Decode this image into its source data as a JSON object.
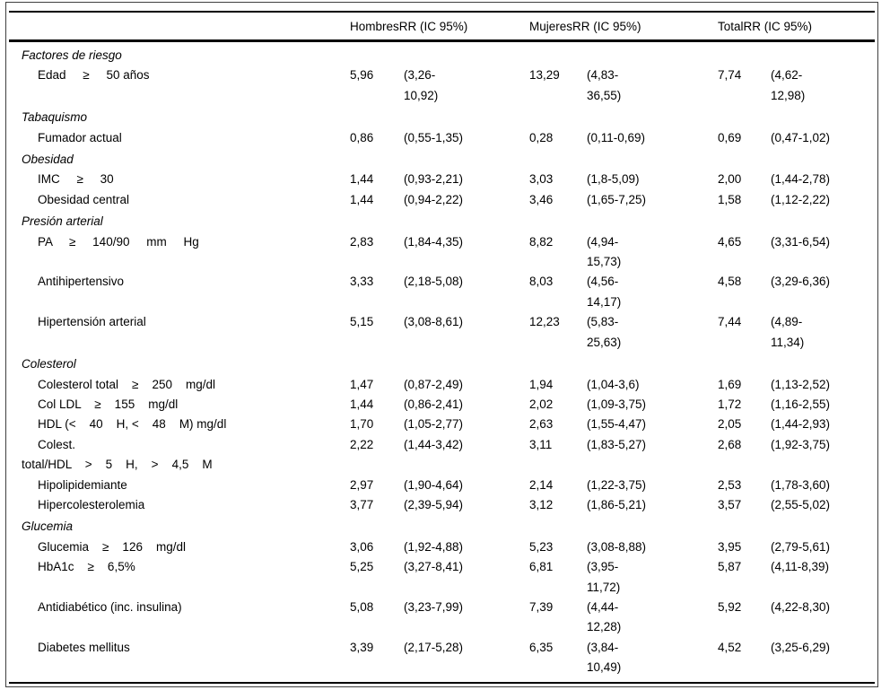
{
  "table": {
    "headers": {
      "hombres": "HombresRR (IC 95%)",
      "mujeres": "MujeresRR (IC 95%)",
      "total": "TotalRR (IC 95%)"
    },
    "rows": [
      {
        "type": "section",
        "label": "Factores de riesgo"
      },
      {
        "type": "item",
        "label": "Edad     ≥     50 años",
        "h_rr": "5,96",
        "h_ci": "(3,26-\n10,92)",
        "m_rr": "13,29",
        "m_ci": "(4,83-\n36,55)",
        "t_rr": "7,74",
        "t_ci": "(4,62-\n12,98)"
      },
      {
        "type": "section",
        "label": "Tabaquismo"
      },
      {
        "type": "item",
        "label": "Fumador actual",
        "h_rr": "0,86",
        "h_ci": "(0,55-1,35)",
        "m_rr": "0,28",
        "m_ci": "(0,11-0,69)",
        "t_rr": "0,69",
        "t_ci": "(0,47-1,02)"
      },
      {
        "type": "section",
        "label": "Obesidad"
      },
      {
        "type": "item",
        "label": "IMC     ≥     30",
        "h_rr": "1,44",
        "h_ci": "(0,93-2,21)",
        "m_rr": "3,03",
        "m_ci": "(1,8-5,09)",
        "t_rr": "2,00",
        "t_ci": "(1,44-2,78)"
      },
      {
        "type": "item",
        "label": "Obesidad central",
        "h_rr": "1,44",
        "h_ci": "(0,94-2,22)",
        "m_rr": "3,46",
        "m_ci": "(1,65-7,25)",
        "t_rr": "1,58",
        "t_ci": "(1,12-2,22)"
      },
      {
        "type": "section",
        "label": "Presión arterial"
      },
      {
        "type": "item",
        "label": "PA     ≥     140/90     mm     Hg",
        "h_rr": "2,83",
        "h_ci": "(1,84-4,35)",
        "m_rr": "8,82",
        "m_ci": "(4,94-\n15,73)",
        "t_rr": "4,65",
        "t_ci": "(3,31-6,54)"
      },
      {
        "type": "item",
        "label": "Antihipertensivo",
        "h_rr": "3,33",
        "h_ci": "(2,18-5,08)",
        "m_rr": "8,03",
        "m_ci": "(4,56-\n14,17)",
        "t_rr": "4,58",
        "t_ci": "(3,29-6,36)"
      },
      {
        "type": "item",
        "label": "Hipertensión arterial",
        "h_rr": "5,15",
        "h_ci": "(3,08-8,61)",
        "m_rr": "12,23",
        "m_ci": "(5,83-\n25,63)",
        "t_rr": "7,44",
        "t_ci": "(4,89-\n11,34)"
      },
      {
        "type": "section",
        "label": "Colesterol"
      },
      {
        "type": "item",
        "label": "Colesterol total    ≥    250    mg/dl",
        "h_rr": "1,47",
        "h_ci": "(0,87-2,49)",
        "m_rr": "1,94",
        "m_ci": "(1,04-3,6)",
        "t_rr": "1,69",
        "t_ci": "(1,13-2,52)"
      },
      {
        "type": "item",
        "label": "Col LDL    ≥    155    mg/dl",
        "h_rr": "1,44",
        "h_ci": "(0,86-2,41)",
        "m_rr": "2,02",
        "m_ci": "(1,09-3,75)",
        "t_rr": "1,72",
        "t_ci": "(1,16-2,55)"
      },
      {
        "type": "item",
        "label": "HDL (<    40    H, <    48    M) mg/dl",
        "h_rr": "1,70",
        "h_ci": "(1,05-2,77)",
        "m_rr": "2,63",
        "m_ci": "(1,55-4,47)",
        "t_rr": "2,05",
        "t_ci": "(1,44-2,93)"
      },
      {
        "type": "item",
        "outdent": true,
        "label": "Colest.\ntotal/HDL    >    5    H,    >    4,5    M",
        "h_rr": "2,22",
        "h_ci": "(1,44-3,42)",
        "m_rr": "3,11",
        "m_ci": "(1,83-5,27)",
        "t_rr": "2,68",
        "t_ci": "(1,92-3,75)"
      },
      {
        "type": "item",
        "label": "Hipolipidemiante",
        "h_rr": "2,97",
        "h_ci": "(1,90-4,64)",
        "m_rr": "2,14",
        "m_ci": "(1,22-3,75)",
        "t_rr": "2,53",
        "t_ci": "(1,78-3,60)"
      },
      {
        "type": "item",
        "label": "Hipercolesterolemia",
        "h_rr": "3,77",
        "h_ci": "(2,39-5,94)",
        "m_rr": "3,12",
        "m_ci": "(1,86-5,21)",
        "t_rr": "3,57",
        "t_ci": "(2,55-5,02)"
      },
      {
        "type": "section",
        "label": "Glucemia"
      },
      {
        "type": "item",
        "label": "Glucemia    ≥    126    mg/dl",
        "h_rr": "3,06",
        "h_ci": "(1,92-4,88)",
        "m_rr": "5,23",
        "m_ci": "(3,08-8,88)",
        "t_rr": "3,95",
        "t_ci": "(2,79-5,61)"
      },
      {
        "type": "item",
        "label": "HbA1c    ≥    6,5%",
        "h_rr": "5,25",
        "h_ci": "(3,27-8,41)",
        "m_rr": "6,81",
        "m_ci": "(3,95-\n11,72)",
        "t_rr": "5,87",
        "t_ci": "(4,11-8,39)"
      },
      {
        "type": "item",
        "label": "Antidiabético (inc. insulina)",
        "h_rr": "5,08",
        "h_ci": "(3,23-7,99)",
        "m_rr": "7,39",
        "m_ci": "(4,44-\n12,28)",
        "t_rr": "5,92",
        "t_ci": "(4,22-8,30)"
      },
      {
        "type": "item",
        "label": "Diabetes mellitus",
        "h_rr": "3,39",
        "h_ci": "(2,17-5,28)",
        "m_rr": "6,35",
        "m_ci": "(3,84-\n10,49)",
        "t_rr": "4,52",
        "t_ci": "(3,25-6,29)"
      }
    ]
  }
}
